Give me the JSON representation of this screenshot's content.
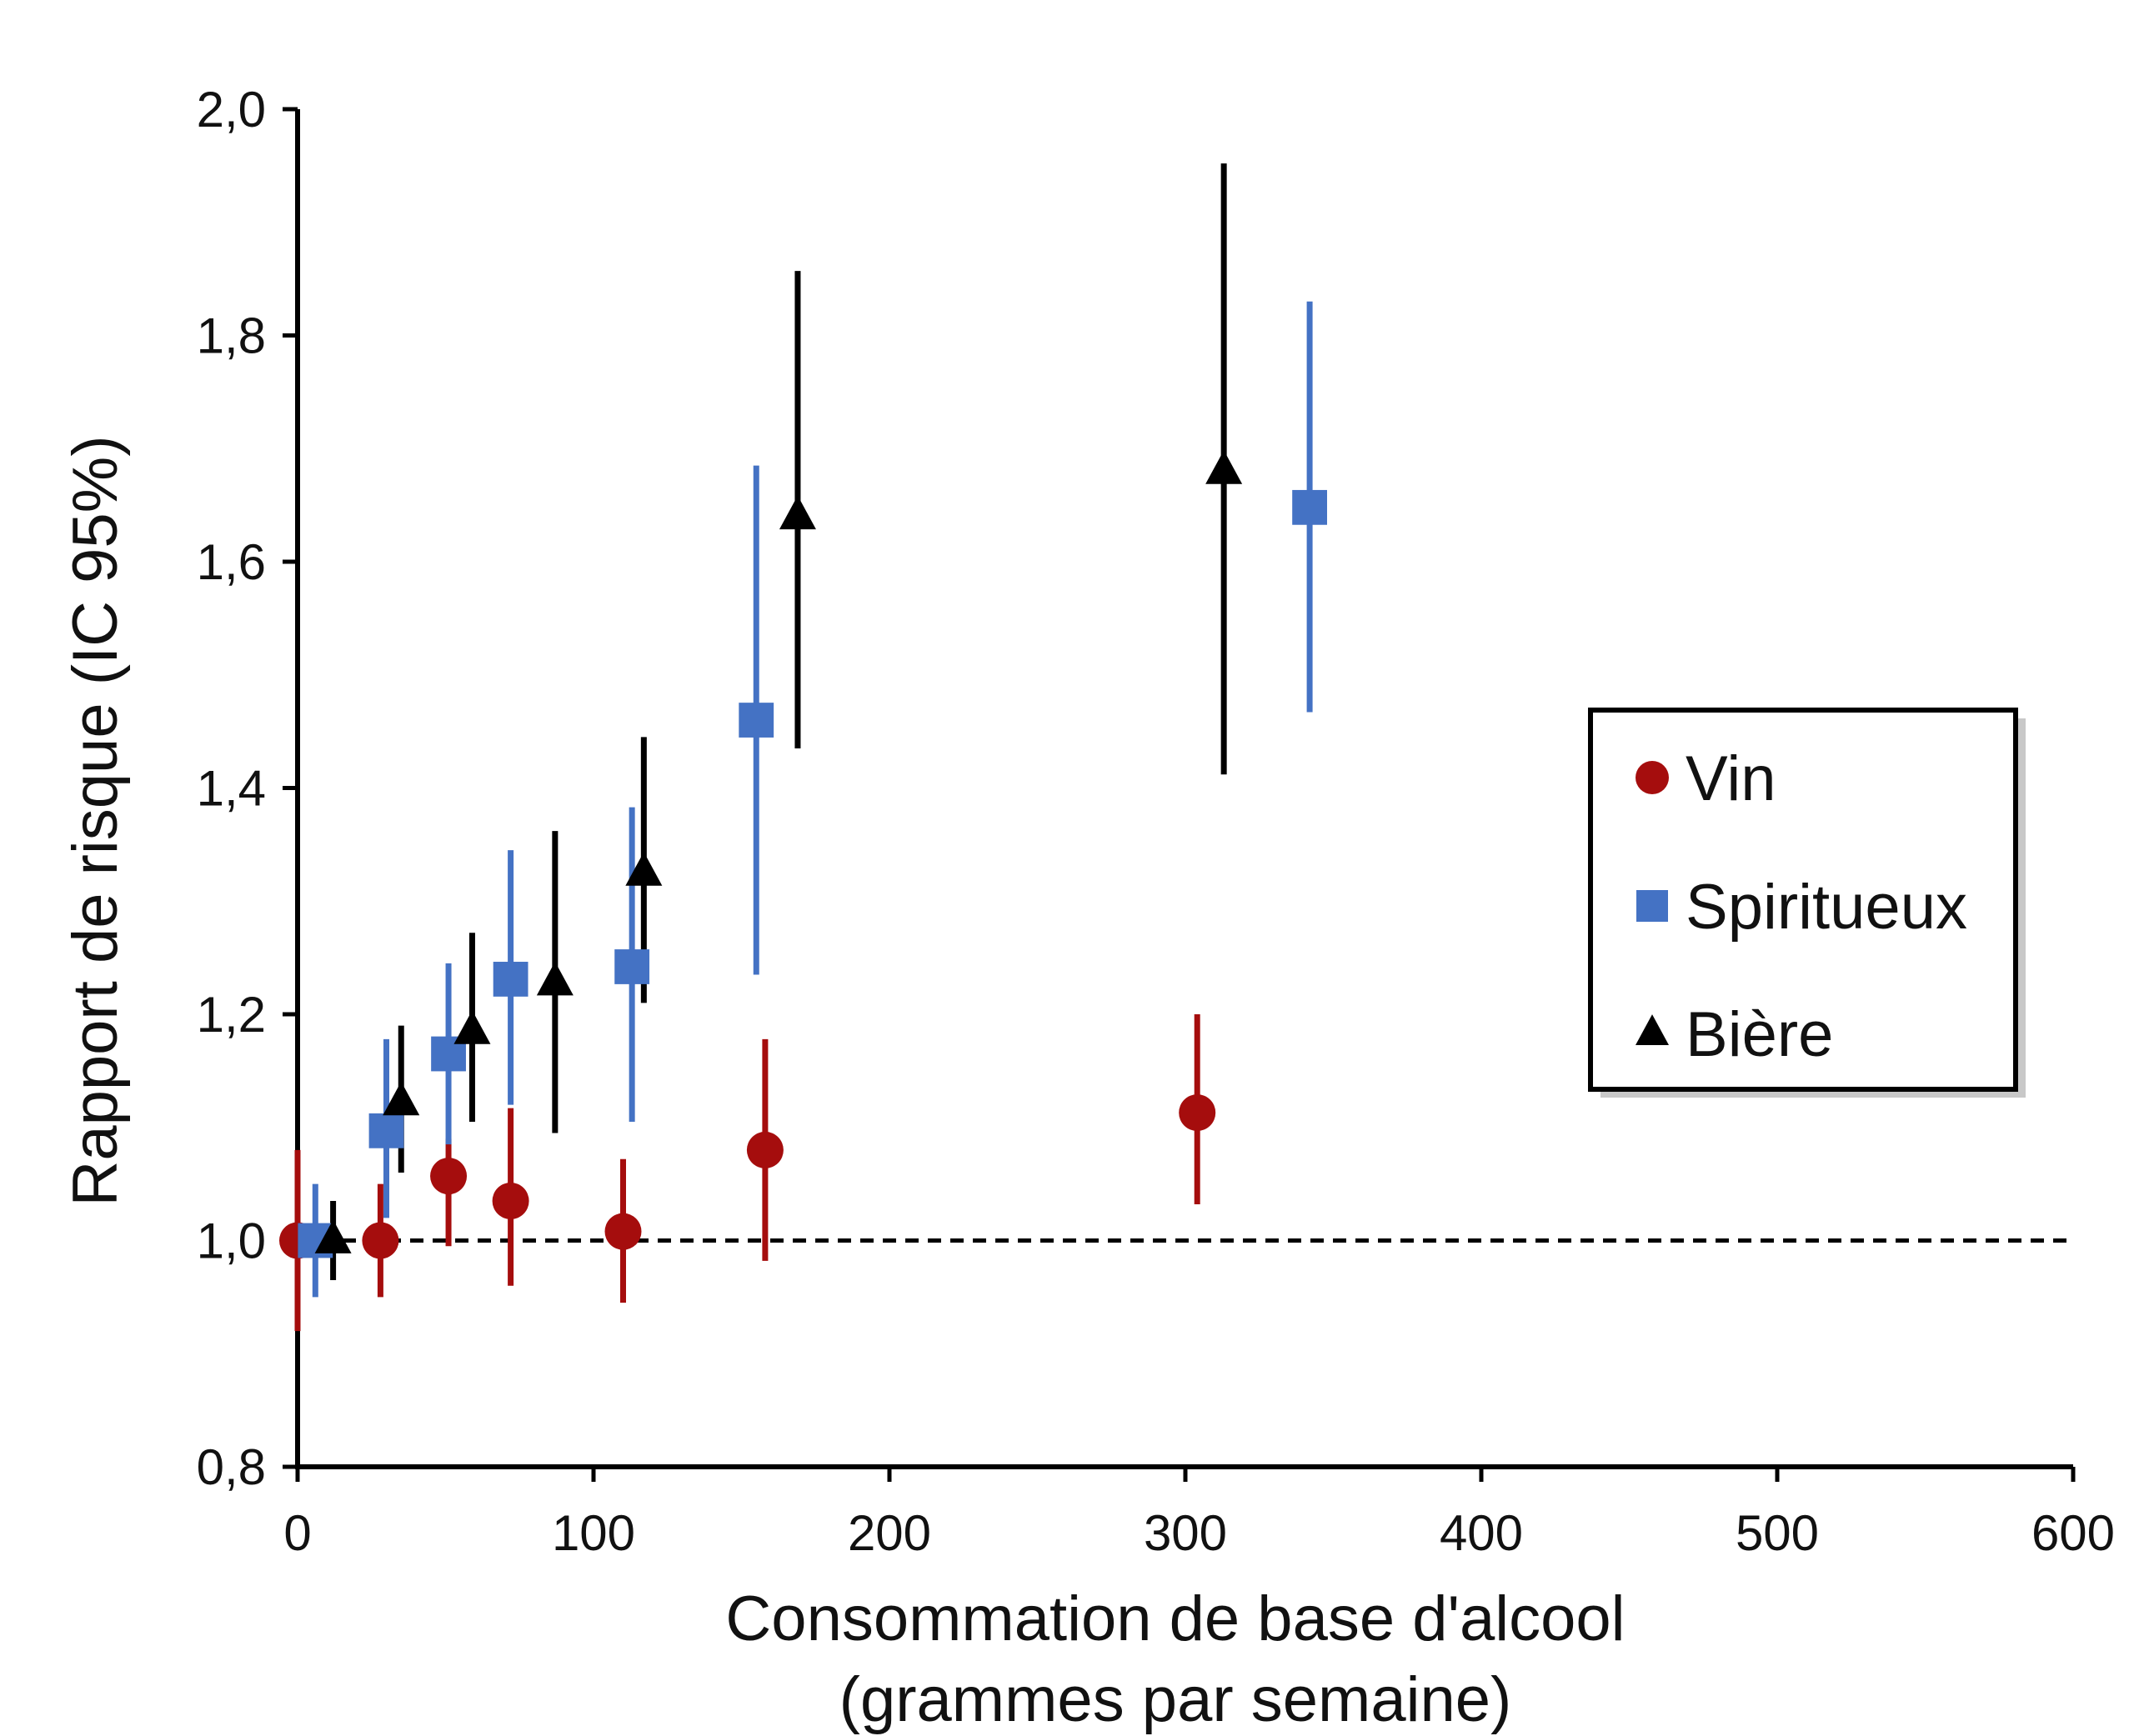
{
  "chart_data": {
    "type": "scatter",
    "xlabel": [
      "Consommation de base d'alcool",
      "(grammes par semaine)"
    ],
    "ylabel": "Rapport de risque (IC 95%)",
    "xlim": [
      0,
      600
    ],
    "ylim": [
      0.8,
      2.0
    ],
    "x_ticks": [
      0,
      100,
      200,
      300,
      400,
      500,
      600
    ],
    "x_tick_labels": [
      "0",
      "100",
      "200",
      "300",
      "400",
      "500",
      "600"
    ],
    "y_ticks": [
      0.8,
      1.0,
      1.2,
      1.4,
      1.6,
      1.8,
      2.0
    ],
    "y_tick_labels": [
      "0,8",
      "1,0",
      "1,2",
      "1,4",
      "1,6",
      "1,8",
      "2,0"
    ],
    "reference_line": {
      "y": 1.0,
      "style": "dashed"
    },
    "grid": false,
    "legend_position": "right",
    "series": [
      {
        "name": "Vin",
        "marker": "circle",
        "color": "#A50D0D",
        "points": [
          {
            "x": 0,
            "y": 1.0,
            "lo": 0.92,
            "hi": 1.08
          },
          {
            "x": 28,
            "y": 1.0,
            "lo": 0.95,
            "hi": 1.05
          },
          {
            "x": 51,
            "y": 1.057,
            "lo": 0.995,
            "hi": 1.09
          },
          {
            "x": 72,
            "y": 1.035,
            "lo": 0.96,
            "hi": 1.117
          },
          {
            "x": 110,
            "y": 1.008,
            "lo": 0.945,
            "hi": 1.072
          },
          {
            "x": 158,
            "y": 1.08,
            "lo": 0.982,
            "hi": 1.178
          },
          {
            "x": 304,
            "y": 1.113,
            "lo": 1.032,
            "hi": 1.2
          }
        ]
      },
      {
        "name": "Spiritueux",
        "marker": "square",
        "color": "#4472C4",
        "points": [
          {
            "x": 6,
            "y": 1.0,
            "lo": 0.95,
            "hi": 1.05
          },
          {
            "x": 30,
            "y": 1.097,
            "lo": 1.02,
            "hi": 1.178
          },
          {
            "x": 51,
            "y": 1.165,
            "lo": 1.085,
            "hi": 1.245
          },
          {
            "x": 72,
            "y": 1.231,
            "lo": 1.12,
            "hi": 1.345
          },
          {
            "x": 113,
            "y": 1.242,
            "lo": 1.105,
            "hi": 1.383
          },
          {
            "x": 155,
            "y": 1.46,
            "lo": 1.235,
            "hi": 1.685
          },
          {
            "x": 342,
            "y": 1.648,
            "lo": 1.467,
            "hi": 1.83
          }
        ]
      },
      {
        "name": "Bière",
        "marker": "triangle",
        "color": "#000000",
        "points": [
          {
            "x": 12,
            "y": 1.0,
            "lo": 0.965,
            "hi": 1.035
          },
          {
            "x": 35,
            "y": 1.122,
            "lo": 1.06,
            "hi": 1.19
          },
          {
            "x": 59,
            "y": 1.185,
            "lo": 1.105,
            "hi": 1.272
          },
          {
            "x": 87,
            "y": 1.228,
            "lo": 1.095,
            "hi": 1.362
          },
          {
            "x": 117,
            "y": 1.325,
            "lo": 1.21,
            "hi": 1.445
          },
          {
            "x": 169,
            "y": 1.64,
            "lo": 1.435,
            "hi": 1.857
          },
          {
            "x": 313,
            "y": 1.68,
            "lo": 1.412,
            "hi": 1.952
          }
        ]
      }
    ]
  }
}
